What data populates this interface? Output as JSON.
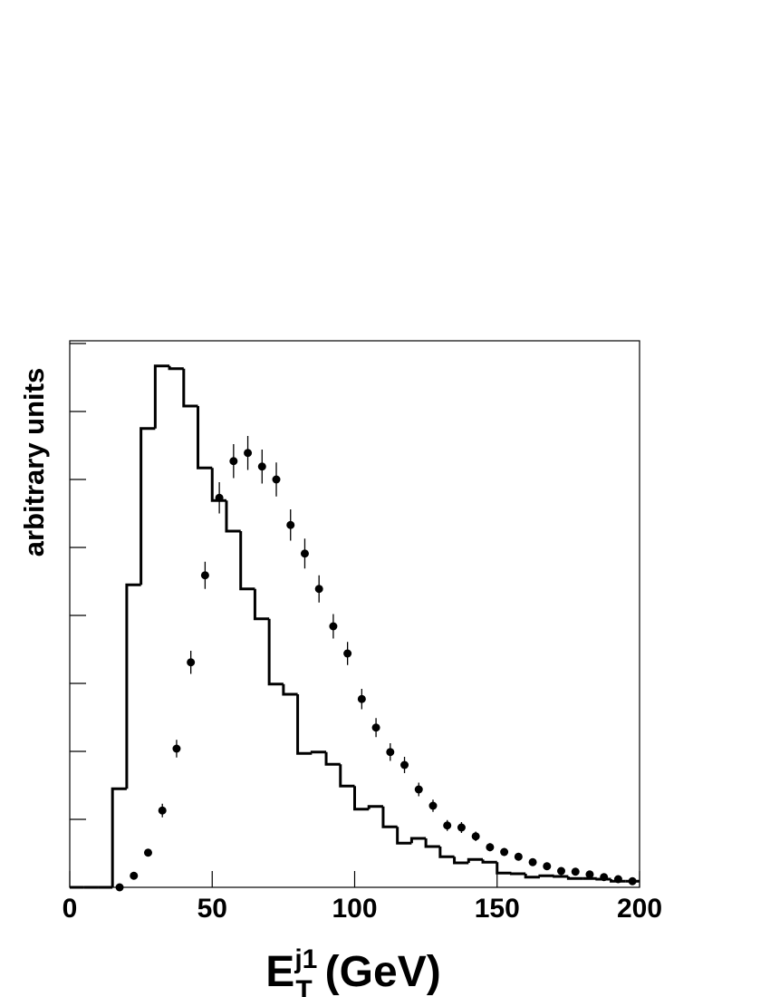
{
  "chart_data": {
    "type": "histogram",
    "y_label": "arbitrary units",
    "x_label": {
      "base": "E",
      "sup": "j1",
      "sub": "T",
      "unit": "(GeV)"
    },
    "bins": [
      0,
      5,
      10,
      15,
      20,
      25,
      30,
      35,
      40,
      45,
      50,
      55,
      60,
      65,
      70,
      75,
      80,
      85,
      90,
      95,
      100,
      105,
      110,
      115,
      120,
      125,
      130,
      135,
      140,
      145,
      150,
      155,
      160,
      165,
      170,
      175,
      180,
      185,
      190,
      195,
      200
    ],
    "counts": [
      0,
      0,
      0,
      1.45,
      4.45,
      6.75,
      7.67,
      7.63,
      7.08,
      6.17,
      5.69,
      5.24,
      4.39,
      3.95,
      2.99,
      2.84,
      1.97,
      1.99,
      1.81,
      1.49,
      1.15,
      1.19,
      0.89,
      0.65,
      0.72,
      0.6,
      0.45,
      0.36,
      0.41,
      0.37,
      0.21,
      0.2,
      0.15,
      0.17,
      0.16,
      0.13,
      0.13,
      0.12,
      0.09,
      0.09
    ],
    "color": "#000000",
    "points": {
      "color": "#000000",
      "x": [
        17.5,
        22.5,
        27.5,
        32.5,
        37.5,
        42.5,
        47.5,
        52.5,
        57.5,
        62.5,
        67.5,
        72.5,
        77.5,
        82.5,
        87.5,
        92.5,
        97.5,
        102.5,
        107.5,
        112.5,
        117.5,
        122.5,
        127.5,
        132.5,
        137.5,
        142.5,
        147.5,
        152.5,
        157.5,
        162.5,
        167.5,
        172.5,
        177.5,
        182.5,
        187.5,
        192.5,
        197.5
      ],
      "values": [
        0,
        0.17,
        0.51,
        1.13,
        2.04,
        3.31,
        4.59,
        5.73,
        6.27,
        6.39,
        6.19,
        6,
        5.33,
        4.91,
        4.39,
        3.84,
        3.44,
        2.77,
        2.35,
        1.99,
        1.8,
        1.44,
        1.2,
        0.91,
        0.88,
        0.75,
        0.59,
        0.52,
        0.45,
        0.37,
        0.31,
        0.24,
        0.23,
        0.19,
        0.15,
        0.12,
        0.09
      ],
      "errors": [
        0,
        0.03,
        0.05,
        0.1,
        0.13,
        0.17,
        0.2,
        0.23,
        0.25,
        0.25,
        0.25,
        0.25,
        0.23,
        0.22,
        0.2,
        0.18,
        0.17,
        0.15,
        0.14,
        0.13,
        0.12,
        0.1,
        0.09,
        0.08,
        0.08,
        0.07,
        0.06,
        0.06,
        0.05,
        0.05,
        0.04,
        0.04,
        0.04,
        0.03,
        0.03,
        0.03,
        0.03
      ]
    },
    "xlim": [
      0,
      200
    ],
    "xticks": [
      0,
      50,
      100,
      150,
      200
    ],
    "ylim": [
      0,
      8.04
    ],
    "yticks": [
      0,
      1,
      2,
      3,
      4,
      5,
      6,
      7,
      8
    ]
  }
}
